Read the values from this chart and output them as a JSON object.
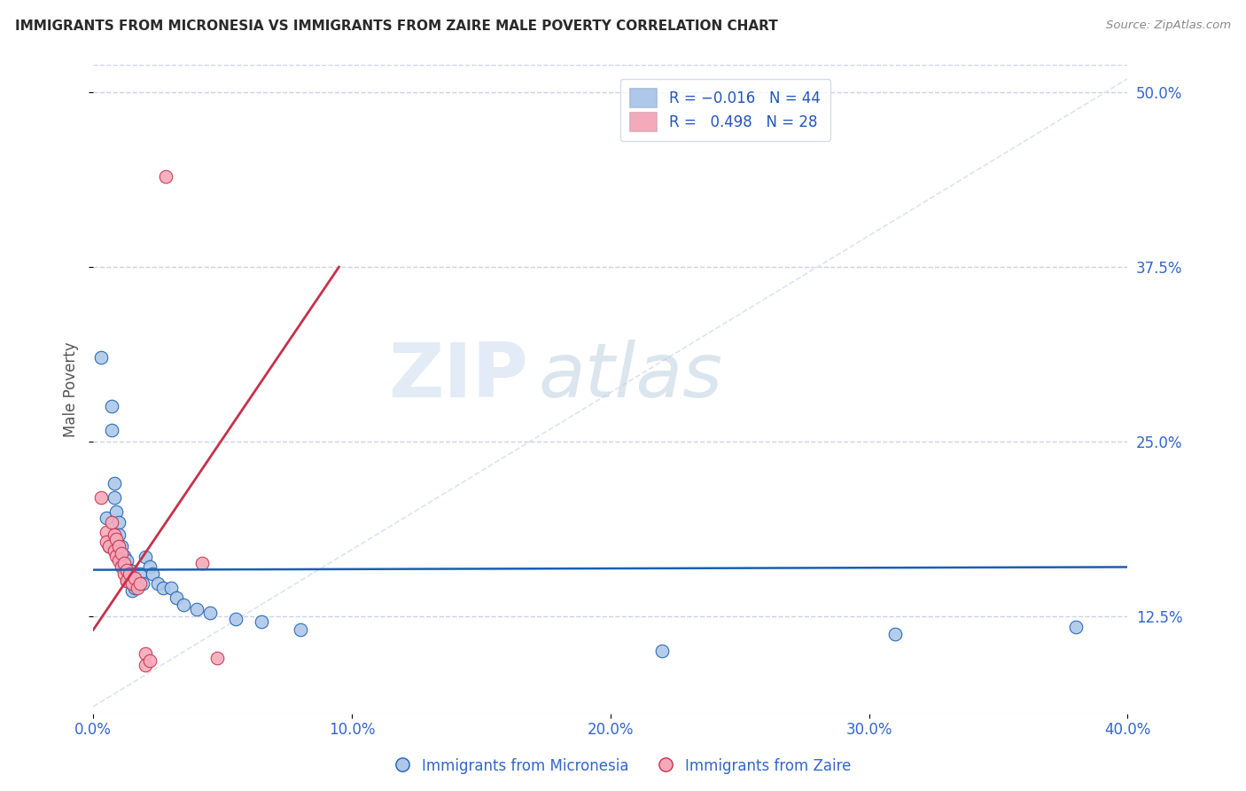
{
  "title": "IMMIGRANTS FROM MICRONESIA VS IMMIGRANTS FROM ZAIRE MALE POVERTY CORRELATION CHART",
  "source": "Source: ZipAtlas.com",
  "ylabel": "Male Poverty",
  "legend_label_blue": "Immigrants from Micronesia",
  "legend_label_pink": "Immigrants from Zaire",
  "blue_color": "#adc8e8",
  "pink_color": "#f5aabb",
  "line_blue": "#1a5fb4",
  "line_pink": "#c8304a",
  "watermark_zip": "ZIP",
  "watermark_atlas": "atlas",
  "blue_scatter": [
    [
      0.003,
      0.31
    ],
    [
      0.005,
      0.195
    ],
    [
      0.006,
      0.175
    ],
    [
      0.007,
      0.275
    ],
    [
      0.007,
      0.258
    ],
    [
      0.008,
      0.22
    ],
    [
      0.008,
      0.21
    ],
    [
      0.009,
      0.2
    ],
    [
      0.01,
      0.192
    ],
    [
      0.01,
      0.183
    ],
    [
      0.01,
      0.175
    ],
    [
      0.011,
      0.175
    ],
    [
      0.011,
      0.165
    ],
    [
      0.012,
      0.168
    ],
    [
      0.012,
      0.16
    ],
    [
      0.013,
      0.165
    ],
    [
      0.013,
      0.157
    ],
    [
      0.013,
      0.15
    ],
    [
      0.014,
      0.158
    ],
    [
      0.014,
      0.15
    ],
    [
      0.015,
      0.157
    ],
    [
      0.015,
      0.15
    ],
    [
      0.015,
      0.143
    ],
    [
      0.016,
      0.152
    ],
    [
      0.016,
      0.145
    ],
    [
      0.017,
      0.147
    ],
    [
      0.018,
      0.155
    ],
    [
      0.019,
      0.148
    ],
    [
      0.02,
      0.167
    ],
    [
      0.022,
      0.16
    ],
    [
      0.023,
      0.155
    ],
    [
      0.025,
      0.148
    ],
    [
      0.027,
      0.145
    ],
    [
      0.03,
      0.145
    ],
    [
      0.032,
      0.138
    ],
    [
      0.035,
      0.133
    ],
    [
      0.04,
      0.13
    ],
    [
      0.045,
      0.127
    ],
    [
      0.055,
      0.123
    ],
    [
      0.065,
      0.121
    ],
    [
      0.08,
      0.115
    ],
    [
      0.22,
      0.1
    ],
    [
      0.31,
      0.112
    ],
    [
      0.38,
      0.117
    ]
  ],
  "pink_scatter": [
    [
      0.003,
      0.21
    ],
    [
      0.005,
      0.185
    ],
    [
      0.005,
      0.178
    ],
    [
      0.006,
      0.175
    ],
    [
      0.007,
      0.192
    ],
    [
      0.008,
      0.183
    ],
    [
      0.008,
      0.172
    ],
    [
      0.009,
      0.18
    ],
    [
      0.009,
      0.168
    ],
    [
      0.01,
      0.175
    ],
    [
      0.01,
      0.165
    ],
    [
      0.011,
      0.17
    ],
    [
      0.011,
      0.16
    ],
    [
      0.012,
      0.163
    ],
    [
      0.012,
      0.155
    ],
    [
      0.013,
      0.158
    ],
    [
      0.013,
      0.15
    ],
    [
      0.014,
      0.155
    ],
    [
      0.015,
      0.148
    ],
    [
      0.016,
      0.152
    ],
    [
      0.017,
      0.145
    ],
    [
      0.018,
      0.148
    ],
    [
      0.02,
      0.098
    ],
    [
      0.02,
      0.09
    ],
    [
      0.022,
      0.093
    ],
    [
      0.028,
      0.44
    ],
    [
      0.042,
      0.163
    ],
    [
      0.048,
      0.095
    ]
  ],
  "xlim": [
    0.0,
    0.4
  ],
  "ylim": [
    0.055,
    0.52
  ],
  "xticks": [
    0.0,
    0.1,
    0.2,
    0.3,
    0.4
  ],
  "yticks": [
    0.125,
    0.25,
    0.375,
    0.5
  ],
  "background_color": "#ffffff",
  "grid_color": "#c8d4e8",
  "title_color": "#2a2a2a",
  "source_color": "#888888",
  "blue_line_slope": 0.005,
  "blue_line_intercept": 0.158,
  "pink_line_x0": 0.0,
  "pink_line_y0": 0.115,
  "pink_line_x1": 0.095,
  "pink_line_y1": 0.375
}
